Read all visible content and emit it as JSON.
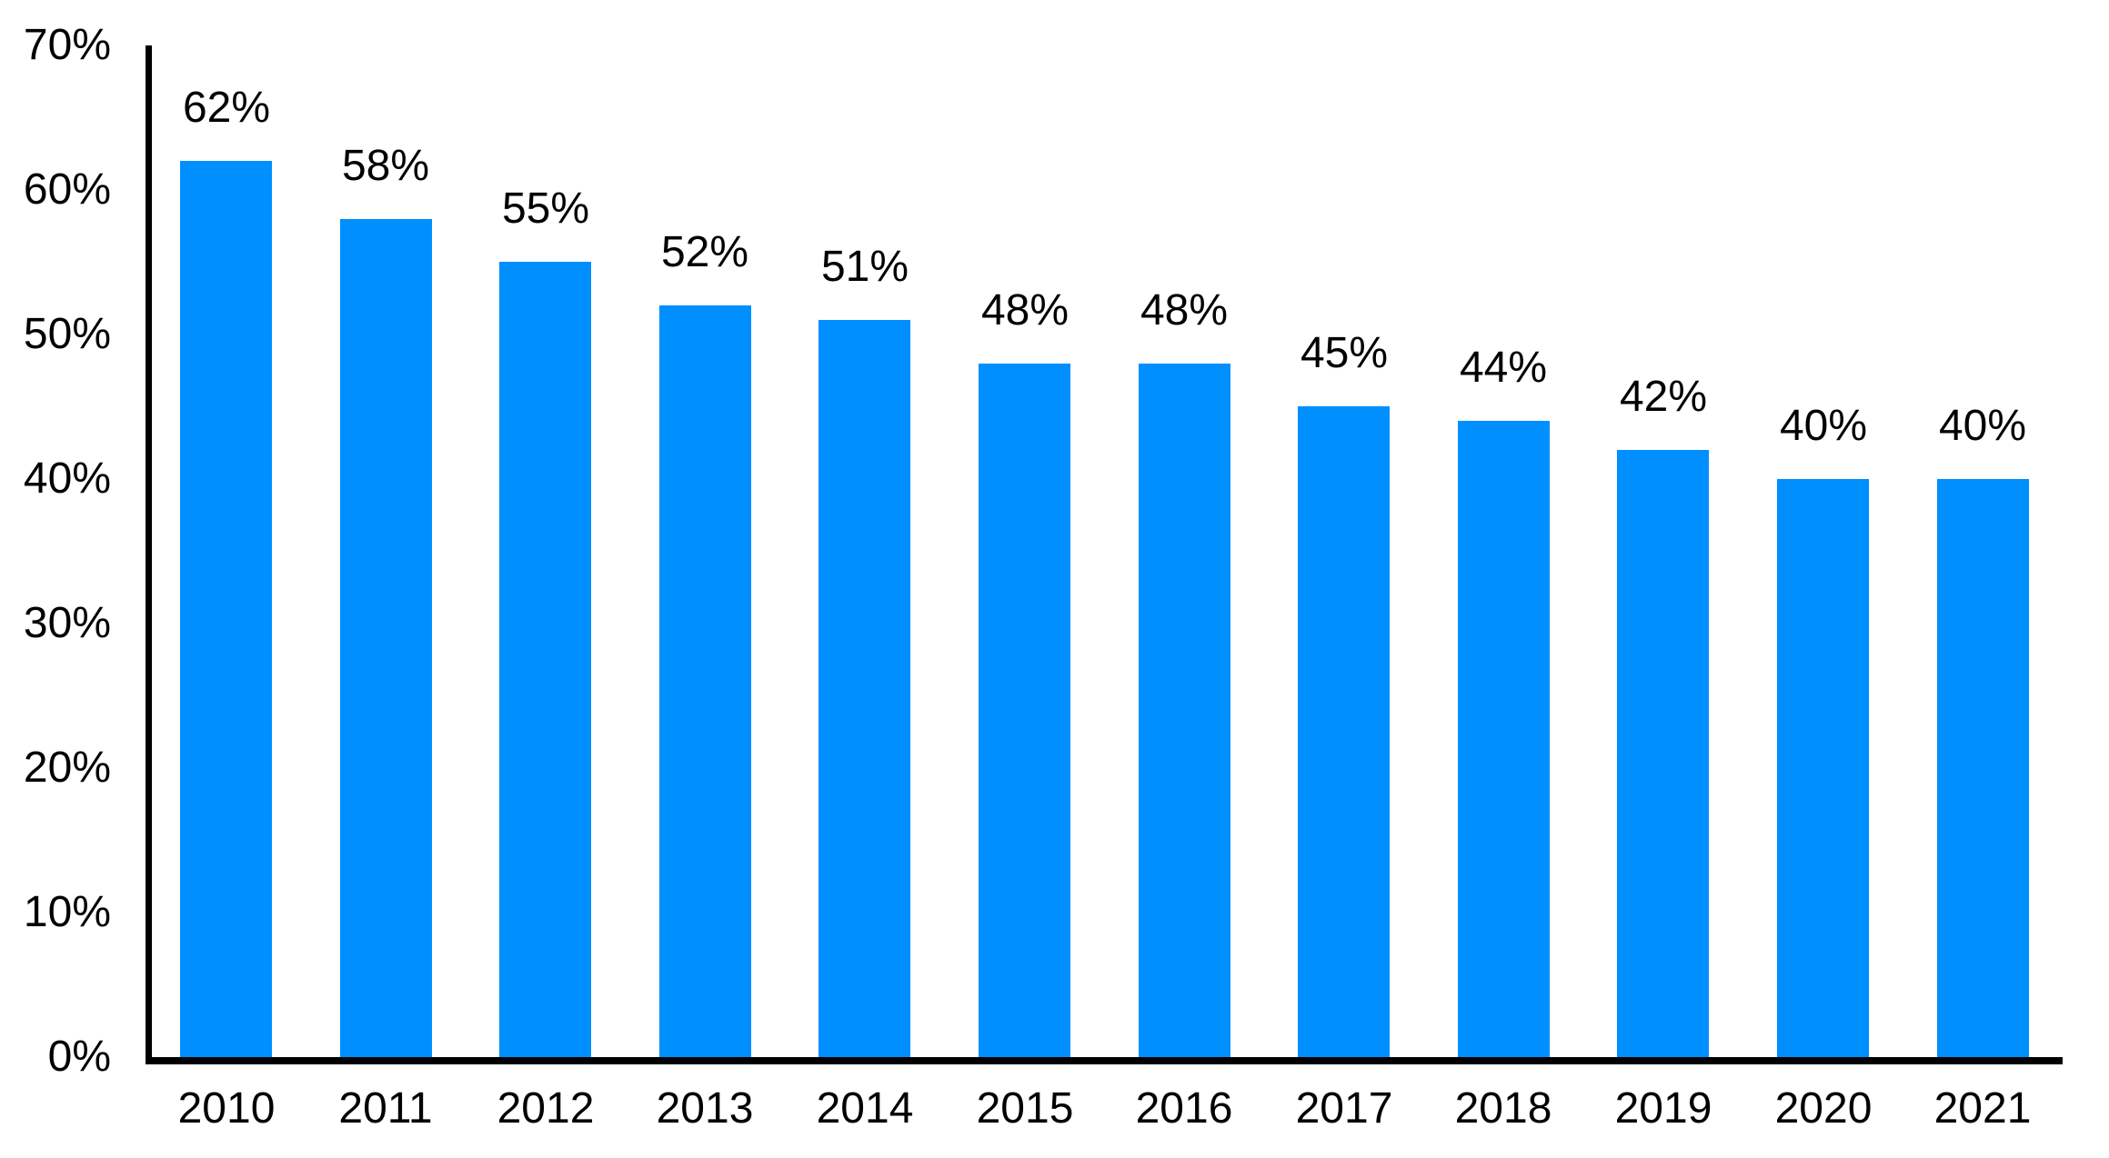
{
  "chart_data": {
    "type": "bar",
    "title": "",
    "xlabel": "",
    "ylabel": "",
    "categories": [
      "2010",
      "2011",
      "2012",
      "2013",
      "2014",
      "2015",
      "2016",
      "2017",
      "2018",
      "2019",
      "2020",
      "2021"
    ],
    "values": [
      62,
      58,
      55,
      52,
      51,
      48,
      48,
      45,
      44,
      42,
      40,
      40
    ],
    "value_labels": [
      "62%",
      "58%",
      "55%",
      "52%",
      "51%",
      "48%",
      "48%",
      "45%",
      "44%",
      "42%",
      "40%",
      "40%"
    ],
    "ylim": [
      0,
      70
    ],
    "ytick_values": [
      70,
      60,
      50,
      40,
      30,
      20,
      10,
      0
    ],
    "ytick_labels": [
      "70%",
      "60%",
      "50%",
      "40%",
      "30%",
      "20%",
      "10%",
      "0%"
    ],
    "grid": false,
    "legend": "none",
    "bar_color": "#008FFF",
    "axis_color": "#000000",
    "text_color": "#000000",
    "background_color": "#FFFFFF"
  }
}
